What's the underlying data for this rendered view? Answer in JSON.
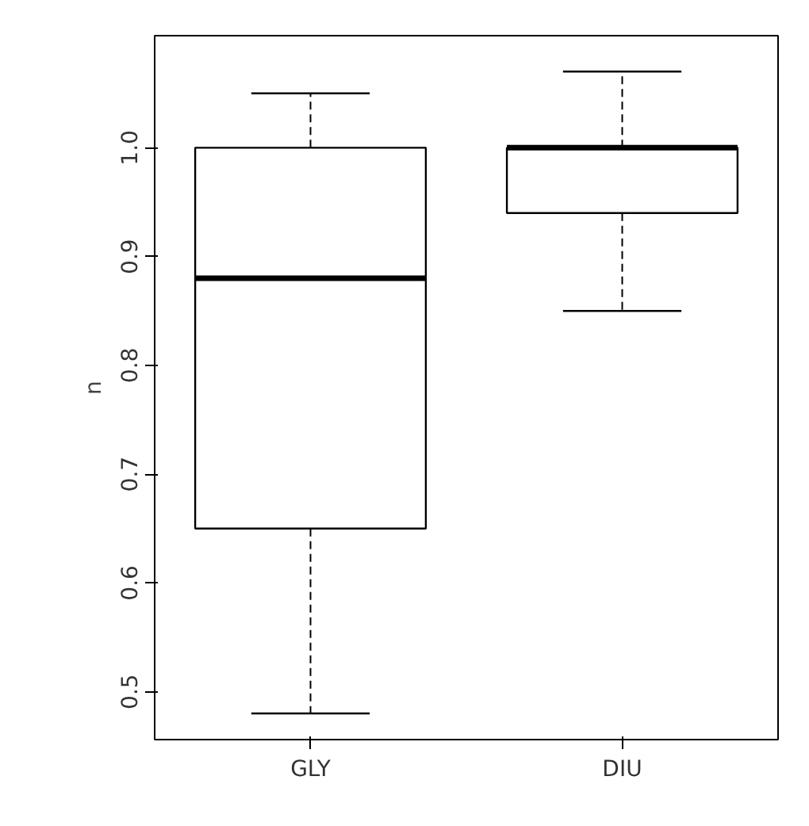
{
  "chart_data": {
    "type": "box",
    "ylabel": "n",
    "categories": [
      "GLY",
      "DIU"
    ],
    "boxes": [
      {
        "low": 0.48,
        "q1": 0.65,
        "median": 0.88,
        "q3": 1.0,
        "high": 1.05
      },
      {
        "low": 0.85,
        "q1": 0.94,
        "median": 1.0,
        "q3": 1.0,
        "high": 1.07
      }
    ],
    "ylim": [
      0.456,
      1.103
    ],
    "yticks": [
      0.5,
      0.6,
      0.7,
      0.8,
      0.9,
      {
        "value": 1,
        "label": "1.0"
      }
    ],
    "grid": false
  }
}
